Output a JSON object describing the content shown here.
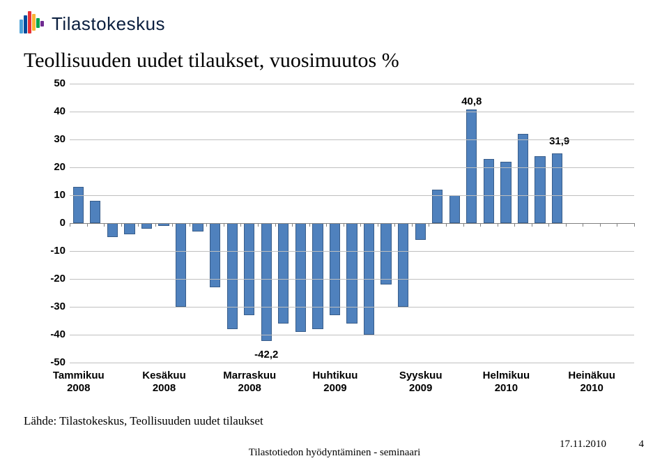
{
  "brand": {
    "name": "Tilastokeskus",
    "logo_colors": [
      "#4ca3d9",
      "#e73137",
      "#f8b334",
      "#00a54f",
      "#6f2c91",
      "#004b9b"
    ]
  },
  "chart": {
    "type": "bar",
    "title": "Teollisuuden uudet tilaukset, vuosimuutos %",
    "ylim": [
      -50,
      50
    ],
    "ytick_step": 10,
    "background_color": "#ffffff",
    "grid_color": "#bfbfbf",
    "axis_color": "#808080",
    "bar_color": "#4f81bd",
    "bar_border": "#385d8a",
    "label_fontsize": 15,
    "title_fontsize": 30,
    "values": [
      13,
      8,
      -5,
      -4,
      -2,
      -1,
      -30,
      -3,
      -23,
      -38,
      -33,
      -42.2,
      -36,
      -39,
      -38,
      -33,
      -36,
      -40,
      -22,
      -30,
      -6,
      12,
      10,
      40.8,
      23,
      22,
      31.9,
      24,
      25
    ],
    "annotations": [
      {
        "index": 11,
        "text": "-42,2",
        "position": "above"
      },
      {
        "index": 23,
        "text": "40,8",
        "position": "above"
      },
      {
        "index": 26,
        "text": "31,9",
        "position": "right"
      }
    ],
    "x_labels": [
      {
        "center_index": 0.5,
        "line1": "Tammikuu",
        "line2": "2008"
      },
      {
        "center_index": 5.5,
        "line1": "Kesäkuu",
        "line2": "2008"
      },
      {
        "center_index": 10.5,
        "line1": "Marraskuu",
        "line2": "2008"
      },
      {
        "center_index": 15.5,
        "line1": "Huhtikuu",
        "line2": "2009"
      },
      {
        "center_index": 20.5,
        "line1": "Syyskuu",
        "line2": "2009"
      },
      {
        "center_index": 25.5,
        "line1": "Helmikuu",
        "line2": "2010"
      },
      {
        "center_index": 30.5,
        "line1": "Heinäkuu",
        "line2": "2010"
      }
    ]
  },
  "source": "Lähde: Tilastokeskus, Teollisuuden uudet tilaukset",
  "footer": {
    "center": "Tilastotiedon hyödyntäminen -\nseminaari",
    "date": "17.11.2010",
    "page": "4"
  }
}
